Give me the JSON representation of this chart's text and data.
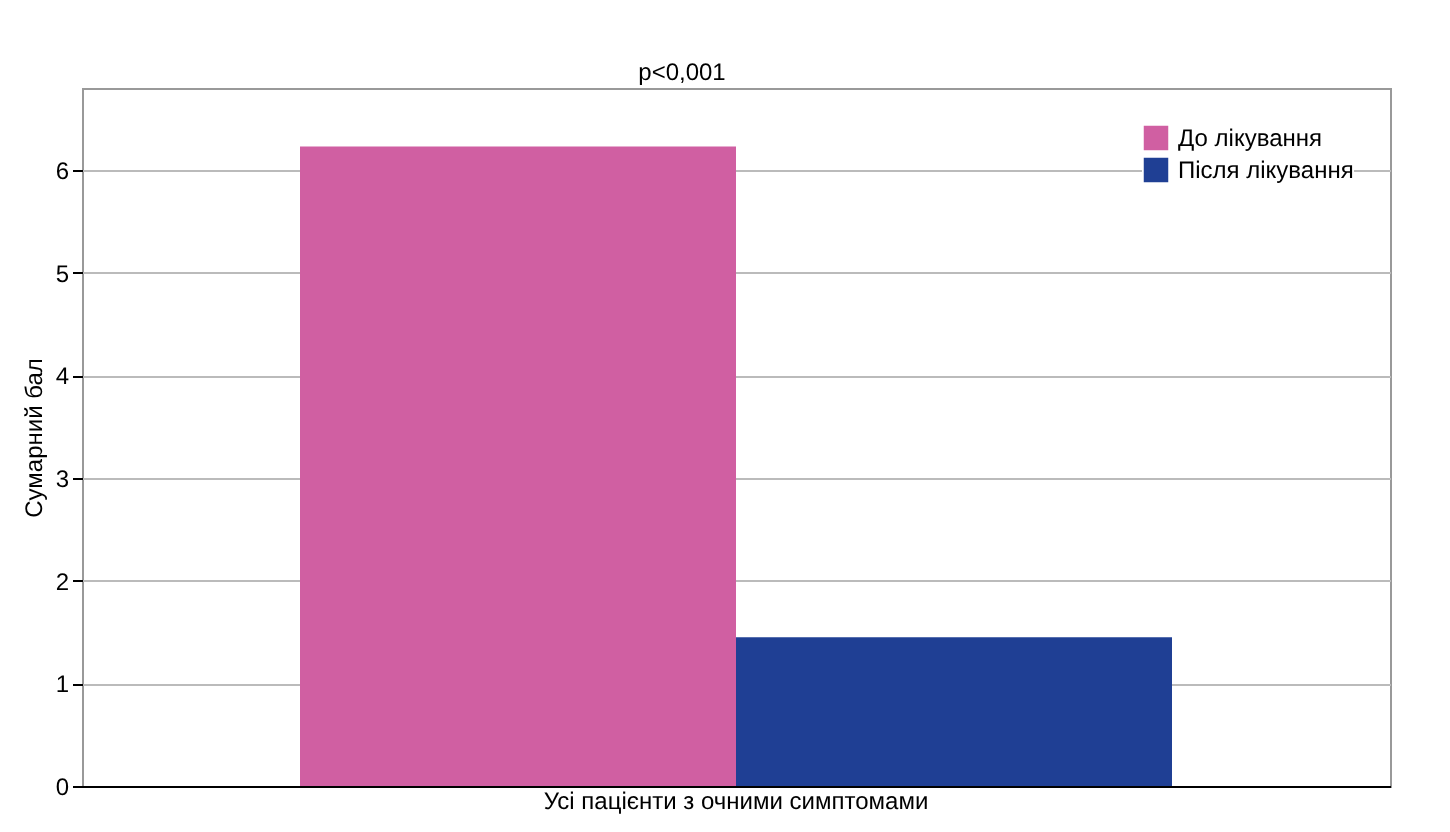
{
  "chart_data": {
    "type": "bar",
    "ylabel": "Сумарний бал",
    "categories": [
      "Усі пацієнти з очними симптомами"
    ],
    "series": [
      {
        "name": "До лікування",
        "color": "#d05fa2",
        "values": [
          6.23
        ]
      },
      {
        "name": "Після лікування",
        "color": "#1f3f94",
        "values": [
          1.45
        ]
      }
    ],
    "ylim": [
      0,
      6.8
    ],
    "yticks": [
      0,
      1,
      2,
      3,
      4,
      5,
      6
    ],
    "grid": "y",
    "legend": "top right",
    "annotations": [
      "p<0,001"
    ]
  }
}
